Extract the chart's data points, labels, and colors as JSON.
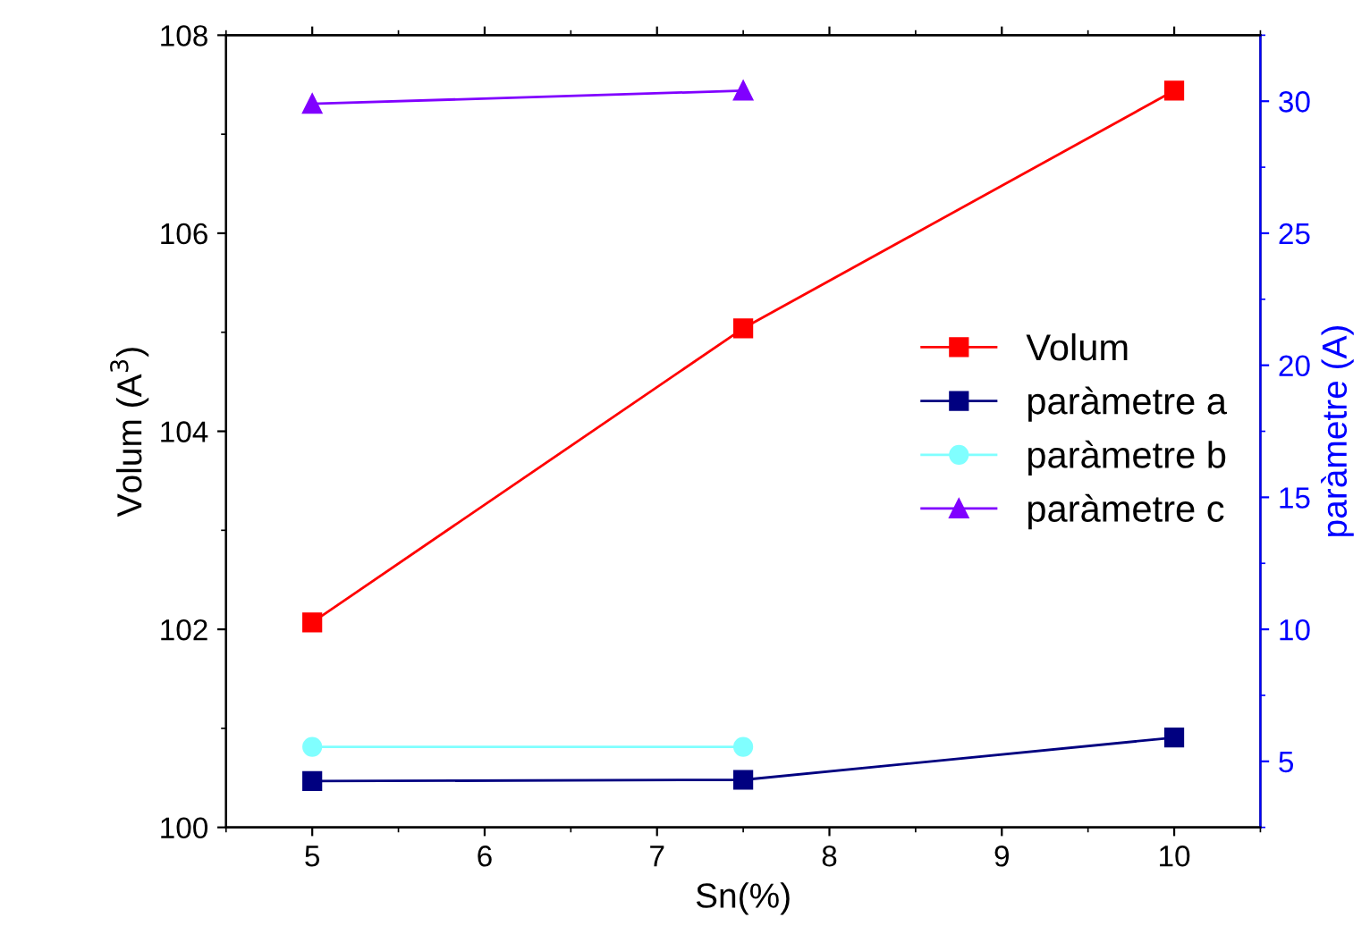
{
  "chart_data": {
    "type": "line",
    "xlabel": "Sn(%)",
    "ylabel": "Volum (A$^{3}$)",
    "y2label": "paràmetre (A)",
    "x": [
      5,
      7.5,
      10
    ],
    "series": [
      {
        "name": "Volum",
        "color": "#ff0000",
        "marker": "square",
        "values": [
          102.07,
          105.04,
          107.44
        ]
      },
      {
        "name": "paràmetre a",
        "color": "#000080",
        "marker": "square",
        "axis": "y2",
        "values": [
          4.25,
          4.3,
          5.9
        ]
      },
      {
        "name": "paràmetre b",
        "color": "#80ffff",
        "marker": "circle",
        "axis": "y2",
        "values": [
          5.55,
          5.55,
          null
        ]
      },
      {
        "name": "paràmetre c",
        "color": "#8000ff",
        "marker": "triangle",
        "axis": "y2",
        "values": [
          29.9,
          30.4,
          null
        ]
      }
    ],
    "xlim": [
      4.5,
      10.5
    ],
    "xticks": [
      5,
      6,
      7,
      8,
      9,
      10
    ],
    "ylim": [
      100,
      108
    ],
    "yticks": [
      100,
      102,
      104,
      106,
      108
    ],
    "y2lim": [
      2.5,
      32.5
    ],
    "y2ticks": [
      5,
      10,
      15,
      20,
      25,
      30
    ],
    "grid": false,
    "legend": "center right",
    "line_style": "solid"
  }
}
